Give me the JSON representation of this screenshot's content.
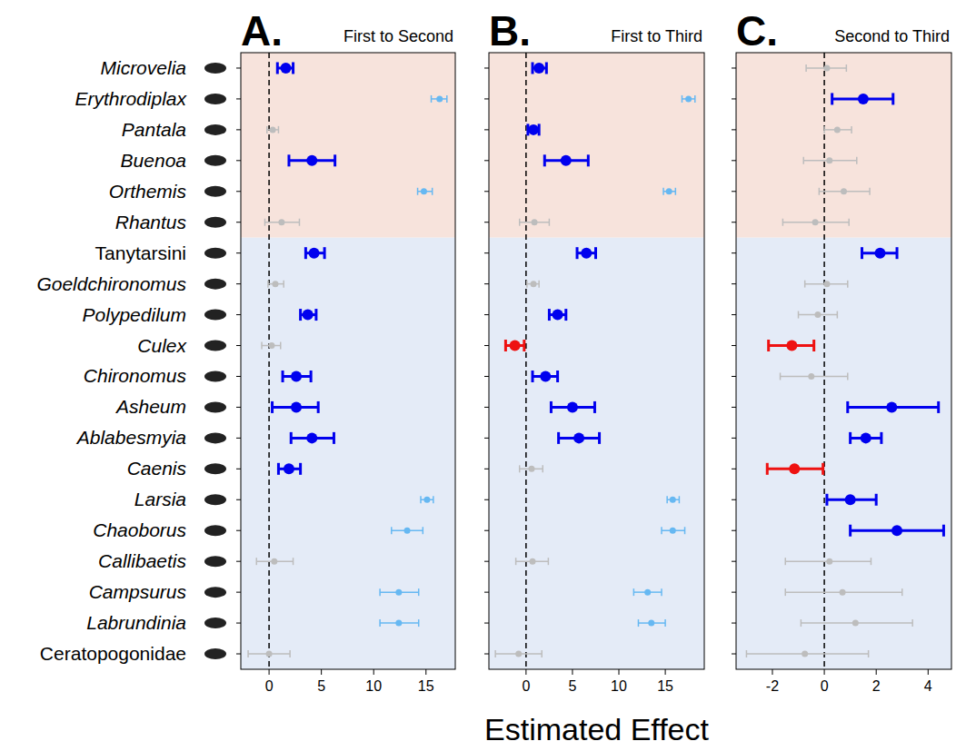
{
  "chart_data": [
    {
      "type": "forest",
      "panel": "A.",
      "title": "First to Second",
      "orientation": "horizontal",
      "tick_labels": true,
      "categories": [
        "Microvelia",
        "Erythrodiplax",
        "Pantala",
        "Buenoa",
        "Orthemis",
        "Rhantus",
        "Tanytarsini",
        "Goeldchironomus",
        "Polypedilum",
        "Culex",
        "Chironomus",
        "Asheum",
        "Ablabesmyia",
        "Caenis",
        "Larsia",
        "Chaoborus",
        "Callibaetis",
        "Campsurus",
        "Labrundinia",
        "Ceratopogonidae"
      ],
      "values": [
        1.6,
        16.3,
        0.35,
        4.1,
        14.8,
        1.2,
        4.3,
        0.6,
        3.7,
        0.25,
        2.6,
        2.6,
        4.1,
        1.9,
        15.1,
        13.2,
        0.5,
        12.4,
        12.4,
        0.0
      ],
      "lower": [
        0.8,
        15.5,
        -0.2,
        1.9,
        14.2,
        -0.4,
        3.5,
        -0.1,
        3.0,
        -0.7,
        1.3,
        0.3,
        2.1,
        0.9,
        14.5,
        11.7,
        -1.2,
        10.6,
        10.6,
        -2.0
      ],
      "upper": [
        2.3,
        17.0,
        0.9,
        6.3,
        15.6,
        2.9,
        5.3,
        1.4,
        4.5,
        1.1,
        4.0,
        4.7,
        6.2,
        3.0,
        15.7,
        14.7,
        2.3,
        14.3,
        14.3,
        2.0
      ],
      "colors": [
        "#0000ee",
        "#66b8f2",
        "#bdbdbd",
        "#0000ee",
        "#66b8f2",
        "#bdbdbd",
        "#0000ee",
        "#bdbdbd",
        "#0000ee",
        "#bdbdbd",
        "#0000ee",
        "#0000ee",
        "#0000ee",
        "#0000ee",
        "#66b8f2",
        "#66b8f2",
        "#bdbdbd",
        "#66b8f2",
        "#66b8f2",
        "#bdbdbd"
      ],
      "reference": 0,
      "xlim": [
        -2.7,
        17.8
      ],
      "xticks": [
        0,
        5,
        10,
        15
      ]
    },
    {
      "type": "forest",
      "panel": "B.",
      "title": "First to Third",
      "orientation": "horizontal",
      "tick_labels": "x",
      "xlabel": "Estimated Effect",
      "categories": [
        "Microvelia",
        "Erythrodiplax",
        "Pantala",
        "Buenoa",
        "Orthemis",
        "Rhantus",
        "Tanytarsini",
        "Goeldchironomus",
        "Polypedilum",
        "Culex",
        "Chironomus",
        "Asheum",
        "Ablabesmyia",
        "Caenis",
        "Larsia",
        "Chaoborus",
        "Callibaetis",
        "Campsurus",
        "Labrundinia",
        "Ceratopogonidae"
      ],
      "values": [
        1.4,
        17.5,
        0.8,
        4.3,
        15.4,
        0.9,
        6.5,
        0.8,
        3.4,
        -1.2,
        2.1,
        5.0,
        5.7,
        0.6,
        15.8,
        15.8,
        0.7,
        13.1,
        13.5,
        -0.8
      ],
      "lower": [
        0.7,
        16.8,
        0.2,
        2.0,
        14.8,
        -0.7,
        5.5,
        0.1,
        2.5,
        -2.2,
        0.7,
        2.7,
        3.5,
        -0.7,
        15.2,
        14.6,
        -1.1,
        11.6,
        12.1,
        -3.3
      ],
      "upper": [
        2.2,
        18.2,
        1.4,
        6.7,
        16.1,
        2.5,
        7.5,
        1.4,
        4.3,
        -0.2,
        3.4,
        7.4,
        7.9,
        1.8,
        16.5,
        17.1,
        2.4,
        14.6,
        15.0,
        1.7
      ],
      "colors": [
        "#0000ee",
        "#66b8f2",
        "#0000ee",
        "#0000ee",
        "#66b8f2",
        "#bdbdbd",
        "#0000ee",
        "#bdbdbd",
        "#0000ee",
        "#ee1111",
        "#0000ee",
        "#0000ee",
        "#0000ee",
        "#bdbdbd",
        "#66b8f2",
        "#66b8f2",
        "#bdbdbd",
        "#66b8f2",
        "#66b8f2",
        "#bdbdbd"
      ],
      "reference": 0,
      "xlim": [
        -4.0,
        19.2
      ],
      "xticks": [
        0,
        5,
        10,
        15
      ]
    },
    {
      "type": "forest",
      "panel": "C.",
      "title": "Second to Third",
      "orientation": "horizontal",
      "tick_labels": "x",
      "categories": [
        "Microvelia",
        "Erythrodiplax",
        "Pantala",
        "Buenoa",
        "Orthemis",
        "Rhantus",
        "Tanytarsini",
        "Goeldchironomus",
        "Polypedilum",
        "Culex",
        "Chironomus",
        "Asheum",
        "Ablabesmyia",
        "Caenis",
        "Larsia",
        "Chaoborus",
        "Callibaetis",
        "Campsurus",
        "Labrundinia",
        "Ceratopogonidae"
      ],
      "values": [
        0.1,
        1.5,
        0.5,
        0.2,
        0.75,
        -0.35,
        2.15,
        0.1,
        -0.25,
        -1.25,
        -0.5,
        2.6,
        1.6,
        -1.15,
        1.0,
        2.8,
        0.2,
        0.7,
        1.2,
        -0.75
      ],
      "lower": [
        -0.7,
        0.3,
        0.0,
        -0.8,
        -0.2,
        -1.6,
        1.45,
        -0.75,
        -1.0,
        -2.15,
        -1.7,
        0.9,
        1.0,
        -2.2,
        0.1,
        1.0,
        -1.5,
        -1.5,
        -0.9,
        -3.0
      ],
      "upper": [
        0.85,
        2.65,
        1.05,
        1.25,
        1.75,
        0.95,
        2.8,
        0.9,
        0.5,
        -0.4,
        0.9,
        4.4,
        2.2,
        -0.05,
        2.0,
        4.6,
        1.8,
        3.0,
        3.4,
        1.7
      ],
      "colors": [
        "#bdbdbd",
        "#0000ee",
        "#bdbdbd",
        "#bdbdbd",
        "#bdbdbd",
        "#bdbdbd",
        "#0000ee",
        "#bdbdbd",
        "#bdbdbd",
        "#ee1111",
        "#bdbdbd",
        "#0000ee",
        "#0000ee",
        "#ee1111",
        "#0000ee",
        "#0000ee",
        "#bdbdbd",
        "#bdbdbd",
        "#bdbdbd",
        "#bdbdbd"
      ],
      "reference": 0,
      "xlim": [
        -3.4,
        4.9
      ],
      "xticks": [
        -2,
        0,
        2,
        4
      ]
    }
  ]
}
